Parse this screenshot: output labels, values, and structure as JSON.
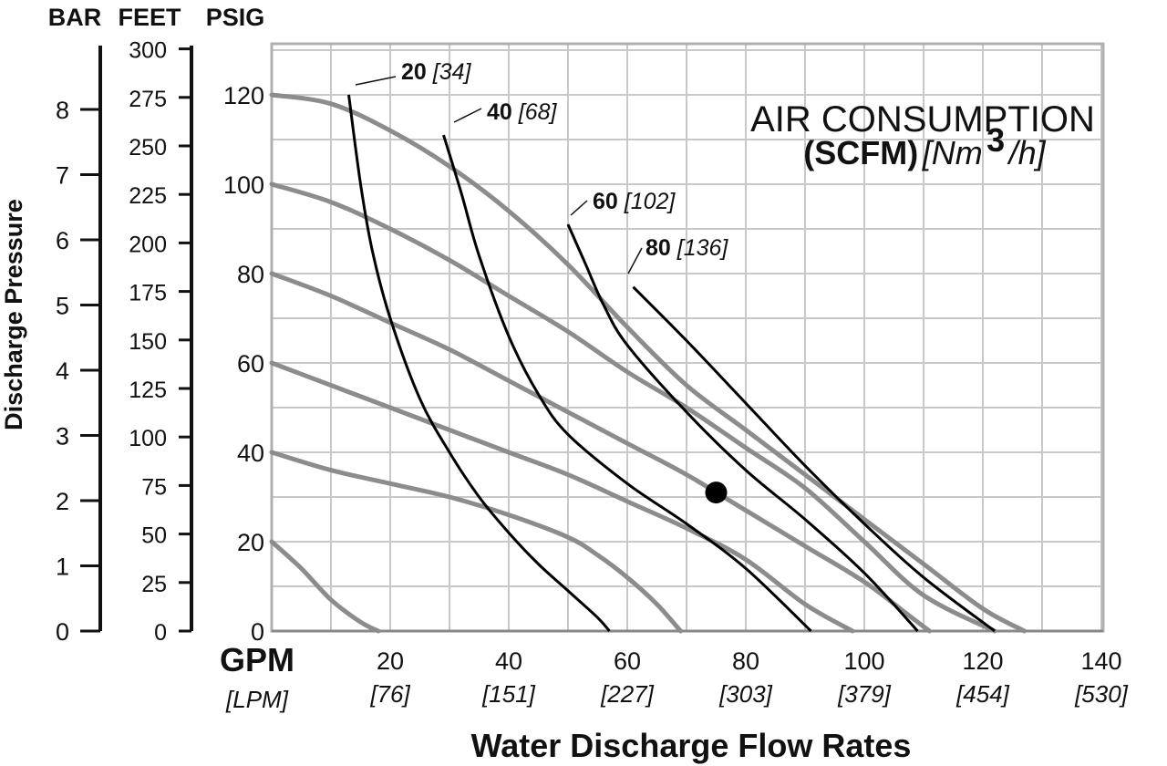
{
  "axis_headers": {
    "bar": "BAR",
    "feet": "FEET",
    "psig": "PSIG"
  },
  "side_label": "Discharge Pressure",
  "x_unit_primary": "GPM",
  "x_unit_secondary": "[LPM]",
  "x_title": "Water Discharge Flow Rates",
  "legend": {
    "title": "AIR CONSUMPTION",
    "unit_bold": "(SCFM)",
    "unit_italic_pre": "[Nm",
    "unit_sup": "3",
    "unit_italic_post": "/h]"
  },
  "colors": {
    "head_curve": "#8c8c8c",
    "air_curve": "#000000",
    "grid": "#c8c8c8",
    "frame": "#b0b0b0"
  },
  "chart_data": {
    "type": "line",
    "xlim": [
      0,
      140
    ],
    "ylim": [
      0,
      130
    ],
    "grid": true,
    "x_ticks": [
      {
        "gpm": "20",
        "lpm": "[76]",
        "v": 20
      },
      {
        "gpm": "40",
        "lpm": "[151]",
        "v": 40
      },
      {
        "gpm": "60",
        "lpm": "[227]",
        "v": 60
      },
      {
        "gpm": "80",
        "lpm": "[303]",
        "v": 80
      },
      {
        "gpm": "100",
        "lpm": "[379]",
        "v": 100
      },
      {
        "gpm": "120",
        "lpm": "[454]",
        "v": 120
      },
      {
        "gpm": "140",
        "lpm": "[530]",
        "v": 140
      }
    ],
    "psig_ticks": [
      "0",
      "20",
      "40",
      "60",
      "80",
      "100",
      "120"
    ],
    "feet_ticks": [
      "0",
      "25",
      "50",
      "75",
      "100",
      "125",
      "150",
      "175",
      "200",
      "225",
      "250",
      "275",
      "300"
    ],
    "bar_ticks": [
      "0",
      "1",
      "2",
      "3",
      "4",
      "5",
      "6",
      "7",
      "8"
    ],
    "head_series": [
      {
        "inlet_psig": 120,
        "points": [
          [
            0,
            120
          ],
          [
            10,
            118
          ],
          [
            20,
            112
          ],
          [
            30,
            104
          ],
          [
            40,
            94
          ],
          [
            50,
            82
          ],
          [
            60,
            68
          ],
          [
            70,
            55
          ],
          [
            80,
            45
          ],
          [
            90,
            35
          ],
          [
            100,
            25
          ],
          [
            110,
            15
          ],
          [
            120,
            5
          ],
          [
            127,
            0
          ]
        ]
      },
      {
        "inlet_psig": 100,
        "points": [
          [
            0,
            100
          ],
          [
            10,
            96
          ],
          [
            20,
            90
          ],
          [
            30,
            83
          ],
          [
            40,
            75
          ],
          [
            50,
            67
          ],
          [
            60,
            58
          ],
          [
            70,
            50
          ],
          [
            80,
            41
          ],
          [
            90,
            32
          ],
          [
            100,
            20
          ],
          [
            110,
            8
          ],
          [
            122,
            0
          ]
        ]
      },
      {
        "inlet_psig": 80,
        "points": [
          [
            0,
            80
          ],
          [
            10,
            75
          ],
          [
            20,
            69
          ],
          [
            30,
            63
          ],
          [
            40,
            56
          ],
          [
            50,
            49
          ],
          [
            60,
            42
          ],
          [
            70,
            35
          ],
          [
            80,
            27
          ],
          [
            90,
            19
          ],
          [
            100,
            11
          ],
          [
            108,
            3
          ],
          [
            111,
            0
          ]
        ]
      },
      {
        "inlet_psig": 60,
        "points": [
          [
            0,
            60
          ],
          [
            10,
            55
          ],
          [
            20,
            50
          ],
          [
            30,
            45
          ],
          [
            40,
            40
          ],
          [
            50,
            35
          ],
          [
            60,
            29
          ],
          [
            70,
            23
          ],
          [
            80,
            16
          ],
          [
            90,
            6
          ],
          [
            98,
            0
          ]
        ]
      },
      {
        "inlet_psig": 40,
        "points": [
          [
            0,
            40
          ],
          [
            10,
            36
          ],
          [
            20,
            33
          ],
          [
            30,
            30
          ],
          [
            40,
            26
          ],
          [
            50,
            21
          ],
          [
            55,
            17
          ],
          [
            60,
            12
          ],
          [
            65,
            6
          ],
          [
            69,
            0
          ]
        ]
      },
      {
        "inlet_psig": 20,
        "points": [
          [
            0,
            20
          ],
          [
            5,
            14
          ],
          [
            10,
            7
          ],
          [
            15,
            2
          ],
          [
            18,
            0
          ]
        ]
      }
    ],
    "air_series": [
      {
        "label": "20",
        "label_alt": "[34]",
        "points": [
          [
            13,
            120
          ],
          [
            15,
            100
          ],
          [
            17,
            85
          ],
          [
            20,
            70
          ],
          [
            25,
            52
          ],
          [
            30,
            40
          ],
          [
            35,
            30
          ],
          [
            40,
            22
          ],
          [
            45,
            15
          ],
          [
            50,
            9
          ],
          [
            55,
            3
          ],
          [
            57,
            0
          ]
        ]
      },
      {
        "label": "40",
        "label_alt": "[68]",
        "points": [
          [
            29,
            111
          ],
          [
            32,
            98
          ],
          [
            35,
            84
          ],
          [
            40,
            66
          ],
          [
            45,
            53
          ],
          [
            50,
            44
          ],
          [
            60,
            33
          ],
          [
            70,
            24
          ],
          [
            80,
            14
          ],
          [
            91,
            0
          ]
        ]
      },
      {
        "label": "60",
        "label_alt": "[102]",
        "points": [
          [
            50,
            91
          ],
          [
            53,
            82
          ],
          [
            56,
            73
          ],
          [
            60,
            64
          ],
          [
            70,
            49
          ],
          [
            80,
            36
          ],
          [
            90,
            25
          ],
          [
            100,
            13
          ],
          [
            109,
            0
          ]
        ]
      },
      {
        "label": "80",
        "label_alt": "[136]",
        "points": [
          [
            61,
            77
          ],
          [
            70,
            65
          ],
          [
            80,
            51
          ],
          [
            90,
            37
          ],
          [
            100,
            24
          ],
          [
            110,
            12
          ],
          [
            122,
            0
          ]
        ]
      }
    ],
    "operating_point": {
      "x": 75,
      "y": 31
    }
  }
}
